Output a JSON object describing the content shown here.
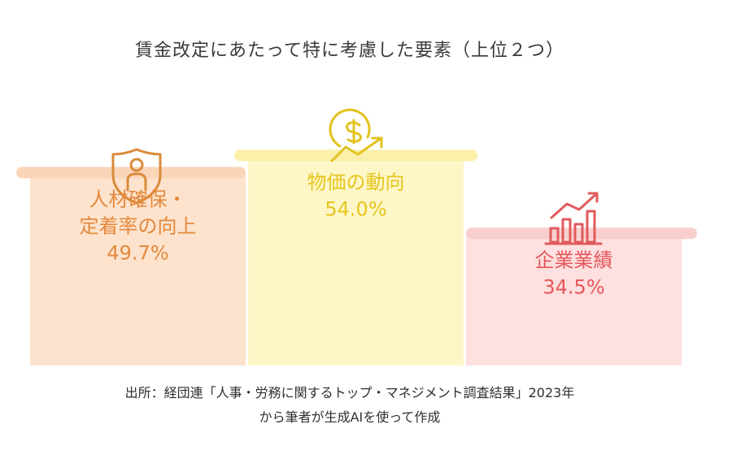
{
  "title": "賃金改定にあたって特に考慮した要素（上位２つ）",
  "chart_data": {
    "type": "bar",
    "categories": [
      "人材確保・定着率の向上",
      "物価の動向",
      "企業業績"
    ],
    "category_lines": [
      [
        "人材確保・",
        "定着率の向上"
      ],
      [
        "物価の動向"
      ],
      [
        "企業業績"
      ]
    ],
    "values": [
      49.7,
      54.0,
      34.5
    ],
    "value_labels": [
      "49.7%",
      "54.0%",
      "34.5%"
    ],
    "ylim": [
      0,
      60
    ],
    "colors": [
      {
        "fill": "#fde3cd",
        "cap": "#fbd5b8",
        "text": "#e4883c",
        "icon": "#d98a3a"
      },
      {
        "fill": "#fdf7c8",
        "cap": "#fbefaa",
        "text": "#e7c51e",
        "icon": "#e2c21e"
      },
      {
        "fill": "#fde0df",
        "cap": "#f9cfcd",
        "text": "#e5575c",
        "icon": "#e15a5c"
      }
    ],
    "icons": [
      "shield-person-icon",
      "dollar-coin-trend-icon",
      "bar-chart-growth-icon"
    ]
  },
  "source": {
    "line1": "出所：経団連「人事・労務に関するトップ・マネジメント調査結果」2023年",
    "line2": "から筆者が生成AIを使って作成"
  }
}
